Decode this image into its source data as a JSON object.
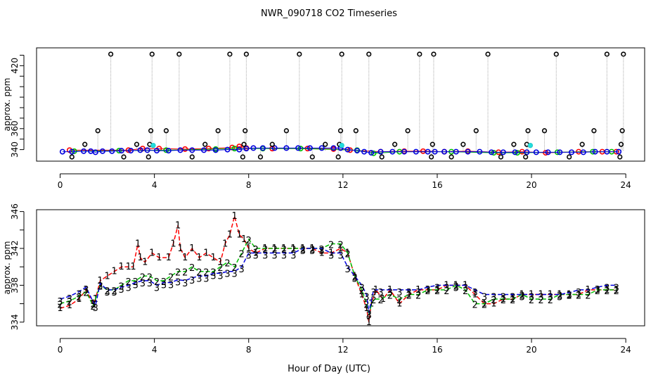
{
  "chart_data": [
    {
      "type": "scatter",
      "title": "NWR_090718  CO2 Timeseries",
      "xlabel": "",
      "ylabel": "approx. ppm",
      "xlim": [
        -1,
        24.8
      ],
      "ylim": [
        329,
        437
      ],
      "x_ticks": [
        0,
        4,
        8,
        12,
        16,
        20,
        24
      ],
      "y_ticks": [
        340,
        360,
        420
      ],
      "y_minor_ticks": [
        350,
        370,
        380,
        390,
        400,
        410,
        430
      ],
      "ref_gray": "#aaaaaa",
      "black_points": {
        "x": [
          0.5,
          1.05,
          1.6,
          2.15,
          2.7,
          3.25,
          3.75,
          3.8,
          3.85,
          3.9,
          4.5,
          5.05,
          5.6,
          6.15,
          6.7,
          7.2,
          7.75,
          7.8,
          7.85,
          7.9,
          8.5,
          9.0,
          9.6,
          10.15,
          10.7,
          11.25,
          11.8,
          11.85,
          11.9,
          11.95,
          12.55,
          13.1,
          13.65,
          14.2,
          14.75,
          15.25,
          15.75,
          15.8,
          15.85,
          16.6,
          17.1,
          17.65,
          18.15,
          18.7,
          19.25,
          19.75,
          19.8,
          19.85,
          20.55,
          21.05,
          21.6,
          22.15,
          22.65,
          23.2,
          23.75,
          23.8,
          23.85,
          23.9
        ],
        "y": [
          333,
          345,
          358,
          431,
          333,
          345,
          333,
          345,
          358,
          431,
          358,
          431,
          333,
          345,
          358,
          431,
          333,
          345,
          358,
          431,
          333,
          345,
          358,
          431,
          333,
          345,
          333,
          345,
          358,
          431,
          358,
          431,
          333,
          345,
          358,
          431,
          333,
          345,
          431,
          333,
          345,
          358,
          431,
          333,
          345,
          333,
          345,
          358,
          358,
          431,
          333,
          345,
          358,
          431,
          333,
          345,
          358,
          431
        ]
      },
      "cyan_points": {
        "x": [
          3.95,
          11.95,
          19.95
        ],
        "y": [
          344,
          344,
          344
        ]
      },
      "series": [
        {
          "name": "red",
          "color": "#ff0000",
          "x": [
            0.4,
            2.9,
            3.5,
            4.2,
            5.3,
            6.3,
            7.3,
            7.6,
            7.9,
            9.0,
            10.5,
            11.6,
            12.3,
            13.6,
            14.6,
            15.4,
            16.3,
            17.3,
            18.6,
            19.6,
            20.6,
            22.0,
            23.0,
            23.6
          ],
          "y": [
            339.5,
            339.5,
            341,
            341,
            340.5,
            341,
            342,
            343,
            341.5,
            341,
            341,
            340.5,
            339.5,
            338,
            338.5,
            338.5,
            338,
            338.5,
            337.5,
            338,
            337,
            338,
            338,
            338
          ]
        },
        {
          "name": "green",
          "color": "#00c000",
          "x": [
            0.6,
            2.5,
            4.5,
            6.6,
            7.4,
            8.6,
            10.2,
            12.6,
            13.3,
            14.4,
            16.6,
            18.4,
            19.4,
            21.1,
            22.6,
            23.4
          ],
          "y": [
            338.5,
            339,
            339.5,
            340.5,
            341,
            341,
            341,
            339.5,
            336.5,
            338,
            338,
            337,
            337,
            337.5,
            338,
            338
          ]
        },
        {
          "name": "blue",
          "color": "#0000dd",
          "x": [
            0.1,
            0.5,
            1.0,
            1.3,
            1.5,
            1.8,
            2.2,
            2.6,
            3.0,
            3.4,
            3.7,
            4.1,
            4.6,
            5.1,
            5.6,
            6.1,
            6.6,
            7.1,
            7.6,
            7.9,
            8.2,
            8.6,
            9.1,
            9.6,
            10.1,
            10.6,
            11.1,
            11.6,
            11.9,
            12.2,
            12.6,
            12.9,
            13.2,
            13.6,
            14.1,
            14.6,
            15.1,
            15.6,
            15.9,
            16.3,
            16.8,
            17.3,
            17.8,
            18.3,
            18.8,
            19.3,
            19.8,
            20.2,
            20.7,
            21.2,
            21.7,
            22.2,
            22.7,
            23.2,
            23.7
          ],
          "y": [
            338,
            338,
            338.5,
            338.5,
            337.5,
            338.5,
            338.5,
            339,
            339,
            339.5,
            339.5,
            339,
            339,
            339.5,
            339.5,
            339.5,
            339.5,
            340,
            340,
            341,
            341.5,
            341.5,
            341.5,
            341.5,
            341.5,
            341.5,
            341.5,
            341.5,
            341.5,
            340,
            339,
            338,
            337,
            338,
            338,
            338,
            338,
            338,
            338,
            338,
            338,
            338,
            338,
            337.5,
            337.5,
            337.5,
            337.5,
            337.5,
            337.5,
            337.5,
            337.5,
            337.5,
            338,
            338,
            338
          ]
        }
      ]
    },
    {
      "type": "line",
      "title": "",
      "xlabel": "Hour of Day (UTC)",
      "ylabel": "approx. ppm",
      "xlim": [
        -1,
        24.8
      ],
      "ylim": [
        333.6,
        346.2
      ],
      "x_ticks": [
        0,
        4,
        8,
        12,
        16,
        20,
        24
      ],
      "y_ticks": [
        334,
        338,
        342,
        346
      ],
      "y_minor_ticks": [
        336,
        340,
        344
      ],
      "series": [
        {
          "name": "1",
          "color": "#ff0000",
          "x": [
            0.0,
            0.4,
            0.8,
            1.1,
            1.4,
            1.5,
            1.7,
            2.0,
            2.3,
            2.6,
            2.9,
            3.1,
            3.3,
            3.4,
            3.6,
            3.9,
            4.2,
            4.6,
            4.8,
            5.0,
            5.1,
            5.3,
            5.6,
            5.9,
            6.2,
            6.5,
            6.8,
            7.0,
            7.2,
            7.4,
            7.6,
            7.8,
            8.0,
            8.3,
            8.7,
            9.1,
            9.5,
            9.9,
            10.3,
            10.7,
            11.1,
            11.5,
            11.9,
            12.2,
            12.5,
            12.8,
            13.0,
            13.1,
            13.2,
            13.4,
            13.7,
            14.0,
            14.4,
            14.8,
            15.2,
            15.6,
            16.0,
            16.4,
            16.8,
            17.2,
            17.6,
            18.0,
            18.4,
            18.8,
            19.2,
            19.6,
            20.0,
            20.4,
            20.8,
            21.2,
            21.6,
            22.0,
            22.4,
            22.8,
            23.2,
            23.6
          ],
          "y": [
            335.5,
            335.8,
            336.5,
            337.5,
            336.0,
            336.5,
            338.5,
            339.0,
            339.5,
            340.0,
            340.0,
            340.0,
            342.5,
            341.0,
            340.5,
            341.5,
            341.0,
            341.0,
            342.5,
            344.5,
            342.0,
            341.0,
            342.0,
            341.0,
            341.5,
            341.0,
            340.5,
            342.5,
            343.5,
            345.5,
            343.5,
            343.0,
            342.0,
            341.5,
            342.0,
            342.0,
            342.0,
            342.0,
            342.0,
            342.0,
            341.5,
            341.5,
            342.0,
            341.5,
            339.0,
            337.0,
            335.5,
            334.0,
            336.0,
            337.5,
            336.5,
            337.5,
            336.0,
            337.0,
            337.5,
            337.5,
            337.5,
            338.0,
            338.0,
            338.0,
            337.0,
            336.0,
            336.0,
            336.5,
            336.5,
            337.0,
            337.0,
            337.0,
            337.0,
            337.0,
            337.0,
            337.0,
            337.5,
            337.5,
            337.5,
            337.5
          ]
        },
        {
          "name": "2",
          "color": "#00c000",
          "x": [
            0.0,
            0.4,
            0.8,
            1.1,
            1.4,
            1.7,
            2.0,
            2.3,
            2.6,
            2.9,
            3.2,
            3.5,
            3.8,
            4.1,
            4.4,
            4.7,
            5.0,
            5.3,
            5.6,
            5.9,
            6.2,
            6.5,
            6.8,
            7.1,
            7.4,
            7.7,
            8.0,
            8.3,
            8.7,
            9.1,
            9.5,
            9.9,
            10.3,
            10.7,
            11.1,
            11.5,
            11.9,
            12.2,
            12.5,
            12.8,
            13.0,
            13.1,
            13.3,
            13.6,
            14.0,
            14.4,
            14.8,
            15.2,
            15.6,
            16.0,
            16.4,
            16.8,
            17.2,
            17.6,
            18.0,
            18.4,
            18.8,
            19.2,
            19.6,
            20.0,
            20.4,
            20.8,
            21.2,
            21.6,
            22.0,
            22.4,
            22.8,
            23.2,
            23.6
          ],
          "y": [
            336.0,
            336.3,
            336.8,
            337.3,
            335.8,
            338.0,
            337.5,
            337.5,
            338.0,
            338.5,
            338.5,
            339.0,
            339.0,
            338.5,
            338.5,
            339.0,
            339.5,
            339.5,
            340.0,
            339.5,
            339.5,
            339.5,
            340.0,
            340.5,
            340.0,
            341.5,
            343.0,
            342.0,
            342.0,
            342.0,
            342.0,
            342.0,
            342.0,
            342.0,
            342.0,
            342.5,
            342.5,
            341.5,
            339.0,
            337.5,
            336.0,
            335.0,
            336.5,
            336.5,
            337.0,
            336.5,
            337.0,
            337.0,
            337.5,
            337.5,
            337.5,
            338.0,
            337.5,
            336.0,
            336.0,
            336.5,
            336.5,
            336.5,
            337.0,
            336.5,
            336.5,
            336.5,
            337.0,
            337.0,
            337.0,
            337.0,
            337.5,
            337.5,
            337.5
          ]
        },
        {
          "name": "3",
          "color": "#0000dd",
          "x": [
            0.0,
            0.4,
            0.8,
            1.1,
            1.4,
            1.5,
            1.7,
            2.0,
            2.3,
            2.6,
            2.9,
            3.2,
            3.5,
            3.8,
            4.1,
            4.4,
            4.7,
            5.0,
            5.3,
            5.6,
            5.9,
            6.2,
            6.5,
            6.8,
            7.1,
            7.4,
            7.7,
            8.0,
            8.3,
            8.7,
            9.1,
            9.5,
            9.9,
            10.3,
            10.7,
            11.1,
            11.5,
            11.9,
            12.2,
            12.5,
            12.8,
            13.0,
            13.1,
            13.3,
            13.6,
            14.0,
            14.4,
            14.8,
            15.2,
            15.6,
            16.0,
            16.4,
            16.8,
            17.2,
            17.6,
            18.0,
            18.4,
            18.8,
            19.2,
            19.6,
            20.0,
            20.4,
            20.8,
            21.2,
            21.6,
            22.0,
            22.4,
            22.8,
            23.2,
            23.6
          ],
          "y": [
            336.5,
            336.8,
            337.3,
            337.8,
            336.2,
            335.8,
            338.2,
            337.5,
            337.5,
            337.8,
            338.0,
            338.3,
            338.5,
            338.5,
            338.0,
            338.3,
            338.3,
            338.6,
            338.5,
            338.8,
            339.0,
            339.0,
            339.3,
            339.3,
            339.5,
            339.5,
            340.0,
            341.5,
            341.5,
            341.5,
            341.5,
            341.5,
            341.5,
            342.0,
            342.0,
            342.0,
            341.5,
            341.5,
            340.0,
            339.0,
            338.0,
            337.0,
            335.0,
            337.5,
            337.5,
            337.5,
            337.5,
            337.5,
            337.5,
            337.8,
            338.0,
            338.0,
            338.0,
            338.0,
            337.5,
            337.0,
            337.0,
            337.0,
            337.0,
            337.0,
            337.0,
            337.0,
            337.0,
            337.0,
            337.2,
            337.5,
            337.5,
            337.8,
            338.0,
            338.0
          ]
        }
      ]
    }
  ]
}
